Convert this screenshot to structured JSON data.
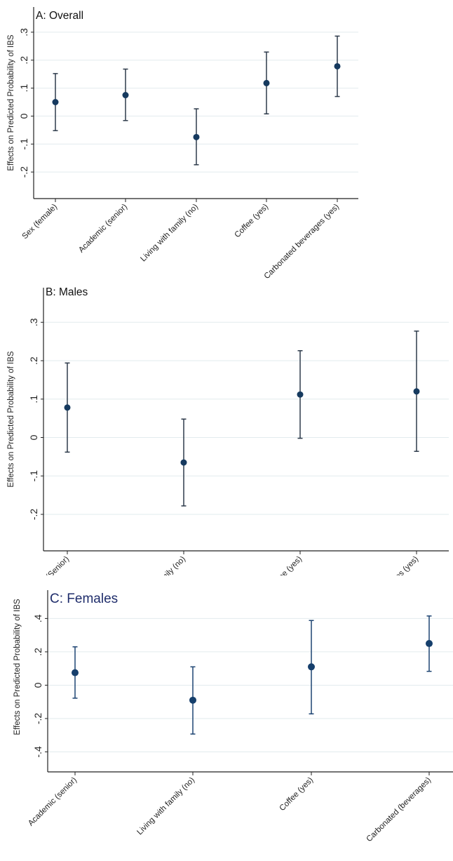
{
  "chart_data": [
    {
      "type": "scatter",
      "subtype": "point-with-error-bars",
      "title": "A: Overall",
      "ylabel": "Effects on Predicted Probability of IBS",
      "ylim": [
        -0.295,
        0.39
      ],
      "yticks": [
        -0.2,
        -0.1,
        0,
        0.1,
        0.2,
        0.3
      ],
      "ytick_labels": [
        "-.2",
        "-.1",
        "0",
        ".1",
        ".2",
        ".3"
      ],
      "grid": true,
      "categories": [
        "Sex (female)",
        "Academic (senior)",
        "Living with family (no)",
        "Coffee (yes)",
        "Carbonated beverages (yes)"
      ],
      "values": [
        0.05,
        0.075,
        -0.075,
        0.118,
        0.178
      ],
      "lower": [
        -0.052,
        -0.016,
        -0.174,
        0.008,
        0.07
      ],
      "upper": [
        0.152,
        0.168,
        0.026,
        0.229,
        0.286
      ],
      "colors": {
        "point": "#163a5f",
        "bar": "#2e3b4b",
        "title": "#111111"
      }
    },
    {
      "type": "scatter",
      "subtype": "point-with-error-bars",
      "title": "B: Males",
      "ylabel": "Effects on Predicted Probability of IBS",
      "ylim": [
        -0.295,
        0.39
      ],
      "yticks": [
        -0.2,
        -0.1,
        0,
        0.1,
        0.2,
        0.3
      ],
      "ytick_labels": [
        "-.2",
        "-.1",
        "0",
        ".1",
        ".2",
        ".3"
      ],
      "grid": true,
      "categories": [
        "Academic (Senior)",
        "Living with family (no)",
        "Coffee (yes)",
        "Carbonated beverages (yes)"
      ],
      "values": [
        0.078,
        -0.065,
        0.112,
        0.12
      ],
      "lower": [
        -0.038,
        -0.178,
        -0.002,
        -0.036
      ],
      "upper": [
        0.194,
        0.048,
        0.226,
        0.277
      ],
      "colors": {
        "point": "#163a5f",
        "bar": "#2e3b4b",
        "title": "#111111"
      }
    },
    {
      "type": "scatter",
      "subtype": "point-with-error-bars",
      "title": "C: Females",
      "ylabel": "Effects on Predicted Probability of IBS",
      "ylim": [
        -0.52,
        0.57
      ],
      "yticks": [
        -0.4,
        -0.2,
        0,
        0.2,
        0.4
      ],
      "ytick_labels": [
        "-.4",
        "-.2",
        "0",
        ".2",
        ".4"
      ],
      "grid": true,
      "categories": [
        "Academic (senior)",
        "Living with family (no)",
        "Coffee (yes)",
        "Carbonated (beverages)"
      ],
      "values": [
        0.075,
        -0.09,
        0.11,
        0.25
      ],
      "lower": [
        -0.078,
        -0.293,
        -0.172,
        0.083
      ],
      "upper": [
        0.23,
        0.11,
        0.388,
        0.415
      ],
      "colors": {
        "point": "#163f6c",
        "bar": "#1d4472",
        "title": "#1f2d6b"
      }
    }
  ]
}
